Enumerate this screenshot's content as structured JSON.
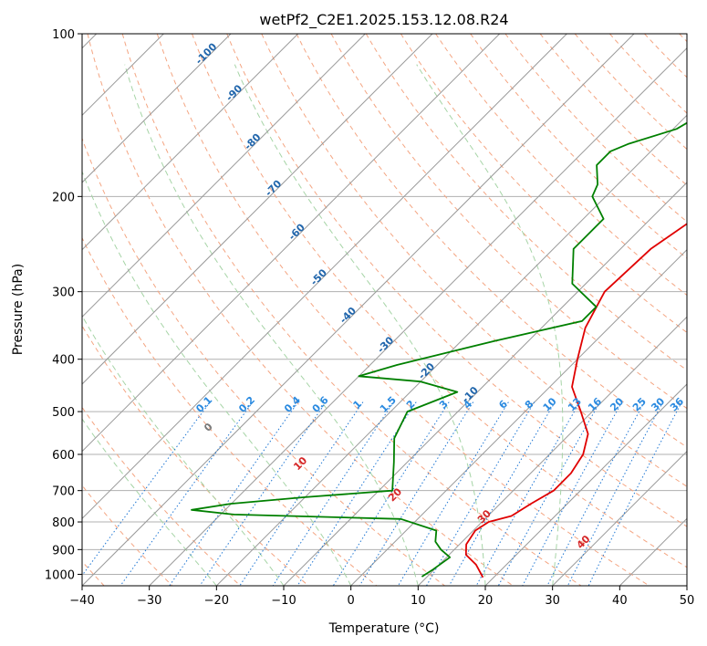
{
  "chart_data": {
    "type": "line",
    "title": "wetPf2_C2E1.2025.153.12.08.R24",
    "xlabel": "Temperature (°C)",
    "ylabel": "Pressure (hPa)",
    "xlim": [
      -40,
      50
    ],
    "ylim": [
      1050,
      100
    ],
    "y_scale": "log",
    "x_ticks": [
      -40,
      -30,
      -20,
      -10,
      0,
      10,
      20,
      30,
      40,
      50
    ],
    "x_tick_labels": [
      "−40",
      "−30",
      "−20",
      "−10",
      "0",
      "10",
      "20",
      "30",
      "40",
      "50"
    ],
    "y_ticks": [
      100,
      200,
      300,
      400,
      500,
      600,
      700,
      800,
      900,
      1000
    ],
    "y_tick_labels": [
      "100",
      "200",
      "300",
      "400",
      "500",
      "600",
      "700",
      "800",
      "900",
      "1000"
    ],
    "grid": true,
    "skew": true,
    "colors": {
      "temperature": "#e00000",
      "dewpoint": "#008000",
      "isotherm": "#999999",
      "dry_adiabat": "#f4a582",
      "moist_adiabat": "#a6d4a6",
      "mixing_ratio": "#1f77d4",
      "mixing_ratio_label": "#2a8ae0",
      "isotherm_label": "#2166ac",
      "dry_label": "#d62728",
      "zero_label": "#777777"
    },
    "series": [
      {
        "key": "temperature",
        "x": [
          18.4,
          15.5,
          12.5,
          11.0,
          10.3,
          11.0,
          13.5,
          14.6,
          16.0,
          16.0,
          15.0,
          12.7,
          8.3,
          3.3,
          0.0,
          -3.5,
          -6.0,
          -5.5,
          -2.8,
          2.0,
          5.5,
          6.0,
          5.0,
          10.5,
          15.5,
          22.0
        ],
        "y": [
          1013,
          960,
          920,
          880,
          830,
          800,
          780,
          740,
          700,
          650,
          600,
          550,
          500,
          450,
          400,
          350,
          300,
          250,
          210,
          190,
          170,
          160,
          150,
          130,
          110,
          100
        ]
      },
      {
        "key": "dewpoint",
        "x": [
          9.2,
          9.8,
          10.5,
          8.0,
          6.0,
          4.5,
          -2.5,
          -28.0,
          -35.0,
          -30.0,
          -20.0,
          -8.0,
          -12.0,
          -15.5,
          -17.5,
          -13.0,
          -20.0,
          -30.0,
          -26.0,
          -15.0,
          -5.0,
          -5.0,
          -12.0,
          -17.0,
          -17.0,
          -22.0,
          -23.0,
          -26.0,
          -26.0,
          -24.5,
          -19.5,
          -16.0,
          -8.0,
          -1.0
        ],
        "y": [
          1010,
          980,
          930,
          900,
          870,
          830,
          790,
          775,
          760,
          740,
          720,
          700,
          620,
          560,
          500,
          460,
          440,
          430,
          410,
          370,
          340,
          320,
          290,
          250,
          220,
          200,
          190,
          175,
          165,
          160,
          150,
          130,
          110,
          100
        ]
      }
    ],
    "isotherm_labels": [
      "-100",
      "-90",
      "-80",
      "-70",
      "-60",
      "-50",
      "-40",
      "-30",
      "-20",
      "-10"
    ],
    "isotherm_label_values": [
      -100,
      -90,
      -80,
      -70,
      -60,
      -50,
      -40,
      -30,
      -20,
      -10
    ],
    "isotherm_label_pressures": [
      110,
      130,
      160,
      195,
      235,
      285,
      335,
      380,
      425,
      470
    ],
    "mixing_ratio_labels": [
      "0.1",
      "0.2",
      "0.4",
      "0.6",
      "1",
      "1.5",
      "2",
      "3",
      "4",
      "6",
      "8",
      "10",
      "13",
      "16",
      "20",
      "25",
      "30",
      "36"
    ],
    "mixing_ratio_values": [
      0.1,
      0.2,
      0.4,
      0.6,
      1,
      1.5,
      2,
      3,
      4,
      6,
      8,
      10,
      13,
      16,
      20,
      25,
      30,
      36
    ],
    "mixing_ratio_label_pressure": 490,
    "dry_adiabat_labels": [
      "0",
      "10",
      "20",
      "30",
      "40"
    ],
    "dry_adiabat_label_values": [
      0,
      10,
      20,
      30,
      40
    ],
    "dry_adiabat_label_pressures": [
      540,
      630,
      720,
      790,
      880
    ]
  }
}
